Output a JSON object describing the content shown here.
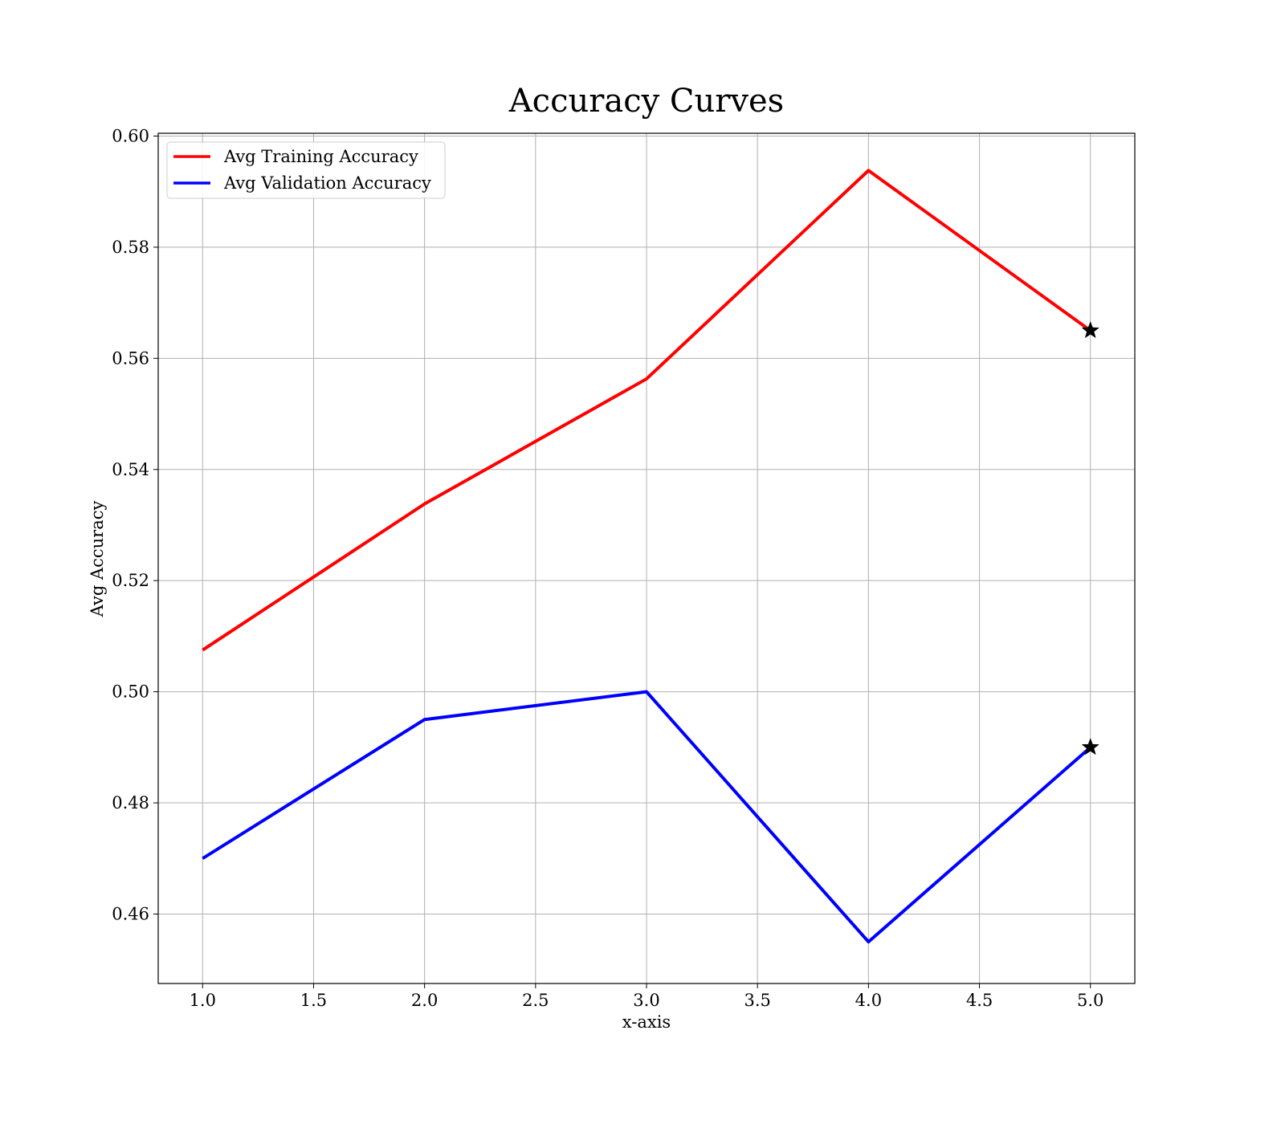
{
  "chart_data": {
    "type": "line",
    "title": "Accuracy Curves",
    "xlabel": "x-axis",
    "ylabel": "Avg Accuracy",
    "x": [
      1.0,
      2.0,
      3.0,
      4.0,
      5.0
    ],
    "xlim": [
      0.8,
      5.2
    ],
    "ylim": [
      0.4475,
      0.6005
    ],
    "xticks": [
      1.0,
      1.5,
      2.0,
      2.5,
      3.0,
      3.5,
      4.0,
      4.5,
      5.0
    ],
    "xtick_labels": [
      "1.0",
      "1.5",
      "2.0",
      "2.5",
      "3.0",
      "3.5",
      "4.0",
      "4.5",
      "5.0"
    ],
    "yticks": [
      0.46,
      0.48,
      0.5,
      0.52,
      0.54,
      0.56,
      0.58,
      0.6
    ],
    "ytick_labels": [
      "0.46",
      "0.48",
      "0.50",
      "0.52",
      "0.54",
      "0.56",
      "0.58",
      "0.60"
    ],
    "grid": true,
    "legend_position": "upper-left",
    "series": [
      {
        "name": "Avg Training Accuracy",
        "color": "#ff0000",
        "values": [
          0.5075,
          0.5338,
          0.5563,
          0.5938,
          0.565
        ],
        "end_marker": "star"
      },
      {
        "name": "Avg Validation Accuracy",
        "color": "#0000ff",
        "values": [
          0.47,
          0.495,
          0.5,
          0.455,
          0.49
        ],
        "end_marker": "star"
      }
    ],
    "marker_color": "#000000"
  }
}
